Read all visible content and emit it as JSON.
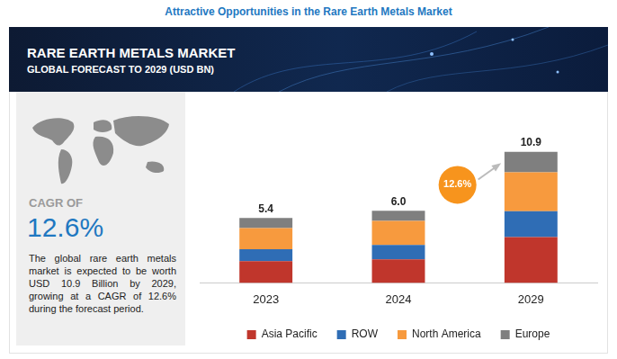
{
  "heading": "Attractive Opportunities in the Rare Earth Metals Market",
  "side_panel": {
    "cagr_label": "CAGR OF",
    "cagr_value": "12.6%",
    "description": "The global rare earth metals market is expected to be worth USD 10.9 Billion by 2029, growing at a CAGR of 12.6% during the forecast period."
  },
  "chart_data": {
    "type": "bar",
    "title": "RARE EARTH METALS MARKET",
    "subtitle": "GLOBAL FORECAST TO 2029 (USD BN)",
    "categories": [
      "2023",
      "2024",
      "2029"
    ],
    "series": [
      {
        "name": "Asia Pacific",
        "color": "#c0362c",
        "values": [
          1.8,
          1.95,
          3.8
        ]
      },
      {
        "name": "ROW",
        "color": "#2f6db5",
        "values": [
          1.0,
          1.2,
          2.15
        ]
      },
      {
        "name": "North America",
        "color": "#f79a3e",
        "values": [
          1.75,
          2.0,
          3.25
        ]
      },
      {
        "name": "Europe",
        "color": "#7f7f7f",
        "values": [
          0.85,
          0.85,
          1.7
        ]
      }
    ],
    "totals": [
      5.4,
      6,
      10.9
    ],
    "total_labels": [
      "5.4",
      "6.0",
      "10.9"
    ],
    "annotations": [
      {
        "text": "12.6%",
        "color": "#f7941d"
      }
    ],
    "stacked": true,
    "legend": "bottom",
    "grid": false,
    "tick_labels": "x"
  }
}
